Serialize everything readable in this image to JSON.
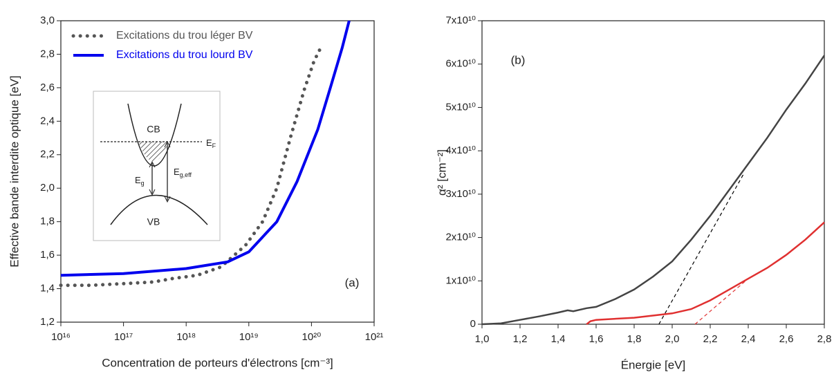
{
  "chart_data": [
    {
      "type": "line",
      "log_x": true,
      "annotation": "(a)",
      "xlabel": "Concentration de porteurs d'électrons [cm⁻³]",
      "ylabel": "Effective bande interdite optique [eV]",
      "xlim": [
        1e+16,
        1e+21
      ],
      "xticks": [
        {
          "value": 1e+16,
          "label": "10¹⁶"
        },
        {
          "value": 1e+17,
          "label": "10¹⁷"
        },
        {
          "value": 1e+18,
          "label": "10¹⁸"
        },
        {
          "value": 1e+19,
          "label": "10¹⁹"
        },
        {
          "value": 1e+20,
          "label": "10²⁰"
        },
        {
          "value": 1e+21,
          "label": "10²¹"
        }
      ],
      "ylim": [
        1.2,
        3.0
      ],
      "yticks": [
        {
          "value": 1.2,
          "label": "1,2"
        },
        {
          "value": 1.4,
          "label": "1,4"
        },
        {
          "value": 1.6,
          "label": "1,6"
        },
        {
          "value": 1.8,
          "label": "1,8"
        },
        {
          "value": 2.0,
          "label": "2,0"
        },
        {
          "value": 2.2,
          "label": "2,2"
        },
        {
          "value": 2.4,
          "label": "2,4"
        },
        {
          "value": 2.6,
          "label": "2,6"
        },
        {
          "value": 2.8,
          "label": "2,8"
        },
        {
          "value": 3.0,
          "label": "3,0"
        }
      ],
      "legend": "upper left",
      "series": [
        {
          "name": "Excitations du trou léger BV",
          "color": "#555555",
          "style": "dotted",
          "x": [
            1e+16,
            3e+16,
            1e+17,
            3e+17,
            6e+17,
            1.5e+18,
            3.6e+18,
            8.9e+18,
            1.66e+19,
            2.8e+19,
            4.6e+19,
            7.7e+19,
            1.1e+20,
            1.5e+20
          ],
          "values": [
            1.42,
            1.42,
            1.43,
            1.44,
            1.46,
            1.48,
            1.53,
            1.66,
            1.8,
            2.0,
            2.3,
            2.59,
            2.76,
            2.86
          ]
        },
        {
          "name": "Excitations du trou lourd BV",
          "color": "#0000ee",
          "style": "solid",
          "x": [
            1e+16,
            1e+17,
            1e+18,
            4.6e+18,
            1e+19,
            2.8e+19,
            5.9e+19,
            1.26e+20,
            2e+20,
            3.1e+20,
            4e+20
          ],
          "values": [
            1.48,
            1.49,
            1.52,
            1.56,
            1.62,
            1.8,
            2.04,
            2.35,
            2.6,
            2.84,
            3.0
          ]
        }
      ],
      "inset": {
        "cb": "CB",
        "vb": "VB",
        "ef": {
          "main": "E",
          "sub": "F"
        },
        "eg": {
          "main": "E",
          "sub": "g"
        },
        "egeff": {
          "main": "E",
          "sub": "g,eff"
        }
      }
    },
    {
      "type": "line",
      "annotation": "(b)",
      "xlabel": "Énergie [eV]",
      "ylabel": "α² [cm⁻²]",
      "xlim": [
        1.0,
        2.8
      ],
      "xticks": [
        {
          "value": 1.0,
          "label": "1,0"
        },
        {
          "value": 1.2,
          "label": "1,2"
        },
        {
          "value": 1.4,
          "label": "1,4"
        },
        {
          "value": 1.6,
          "label": "1,6"
        },
        {
          "value": 1.8,
          "label": "1,8"
        },
        {
          "value": 2.0,
          "label": "2,0"
        },
        {
          "value": 2.2,
          "label": "2,2"
        },
        {
          "value": 2.4,
          "label": "2,4"
        },
        {
          "value": 2.6,
          "label": "2,6"
        },
        {
          "value": 2.8,
          "label": "2,8"
        }
      ],
      "ylim": [
        0,
        70000000000.0
      ],
      "yticks": [
        0,
        {
          "value": 10000000000.0,
          "label": "1x10¹⁰"
        },
        {
          "value": 20000000000.0,
          "label": "2x10¹⁰"
        },
        {
          "value": 30000000000.0,
          "label": "3x10¹⁰"
        },
        {
          "value": 40000000000.0,
          "label": "4x10¹⁰"
        },
        {
          "value": 50000000000.0,
          "label": "5x10¹⁰"
        },
        {
          "value": 60000000000.0,
          "label": "6x10¹⁰"
        },
        {
          "value": 70000000000.0,
          "label": "7x10¹⁰"
        }
      ],
      "series": [
        {
          "color": "#444444",
          "style": "solid",
          "x": [
            1.0,
            1.1,
            1.2,
            1.3,
            1.4,
            1.45,
            1.48,
            1.55,
            1.6,
            1.7,
            1.8,
            1.9,
            2.0,
            2.1,
            2.2,
            2.3,
            2.4,
            2.5,
            2.6,
            2.7,
            2.8
          ],
          "values": [
            0,
            200000000.0,
            1000000000.0,
            1800000000.0,
            2700000000.0,
            3200000000.0,
            3000000000.0,
            3700000000.0,
            4000000000.0,
            5800000000.0,
            8000000000.0,
            11000000000.0,
            14500000000.0,
            19500000000.0,
            25000000000.0,
            31000000000.0,
            37000000000.0,
            43000000000.0,
            49500000000.0,
            55500000000.0,
            62000000000.0
          ]
        },
        {
          "color": "#e03030",
          "style": "solid",
          "x": [
            1.55,
            1.57,
            1.6,
            1.8,
            2.0,
            2.1,
            2.2,
            2.3,
            2.4,
            2.5,
            2.6,
            2.7,
            2.8
          ],
          "values": [
            0,
            700000000.0,
            1000000000.0,
            1500000000.0,
            2500000000.0,
            3500000000.0,
            5500000000.0,
            8000000000.0,
            10500000000.0,
            13000000000.0,
            16000000000.0,
            19500000000.0,
            23500000000.0
          ]
        }
      ],
      "fits": [
        {
          "color": "#000000",
          "x": [
            1.93,
            2.38
          ],
          "values": [
            0,
            35000000000.0
          ]
        },
        {
          "color": "#e03030",
          "x": [
            2.12,
            2.4
          ],
          "values": [
            0,
            10500000000.0
          ]
        }
      ]
    }
  ]
}
